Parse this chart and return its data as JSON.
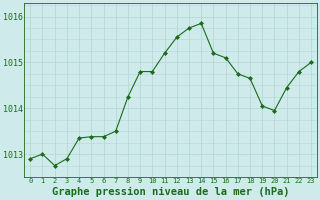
{
  "x": [
    0,
    1,
    2,
    3,
    4,
    5,
    6,
    7,
    8,
    9,
    10,
    11,
    12,
    13,
    14,
    15,
    16,
    17,
    18,
    19,
    20,
    21,
    22,
    23
  ],
  "y": [
    1012.9,
    1013.0,
    1012.75,
    1012.9,
    1013.35,
    1013.38,
    1013.38,
    1013.5,
    1014.25,
    1014.8,
    1014.8,
    1015.2,
    1015.55,
    1015.75,
    1015.85,
    1015.2,
    1015.1,
    1014.75,
    1014.65,
    1014.05,
    1013.95,
    1014.45,
    1014.8,
    1015.0
  ],
  "line_color": "#1a6b1a",
  "marker": "D",
  "markersize": 2.0,
  "linewidth": 0.8,
  "bg_color": "#ceeaea",
  "grid_color": "#b8d8d8",
  "title": "Graphe pression niveau de la mer (hPa)",
  "title_fontsize": 7.5,
  "title_fontweight": "bold",
  "title_color": "#1a6b1a",
  "yticks": [
    1013,
    1014,
    1015,
    1016
  ],
  "xtick_labels": [
    "0",
    "1",
    "2",
    "3",
    "4",
    "5",
    "6",
    "7",
    "8",
    "9",
    "10",
    "11",
    "12",
    "13",
    "14",
    "15",
    "16",
    "17",
    "18",
    "19",
    "20",
    "21",
    "22",
    "23"
  ],
  "ylim": [
    1012.5,
    1016.3
  ],
  "xlim": [
    -0.5,
    23.5
  ],
  "ytick_fontsize": 6.0,
  "xtick_fontsize": 5.0
}
